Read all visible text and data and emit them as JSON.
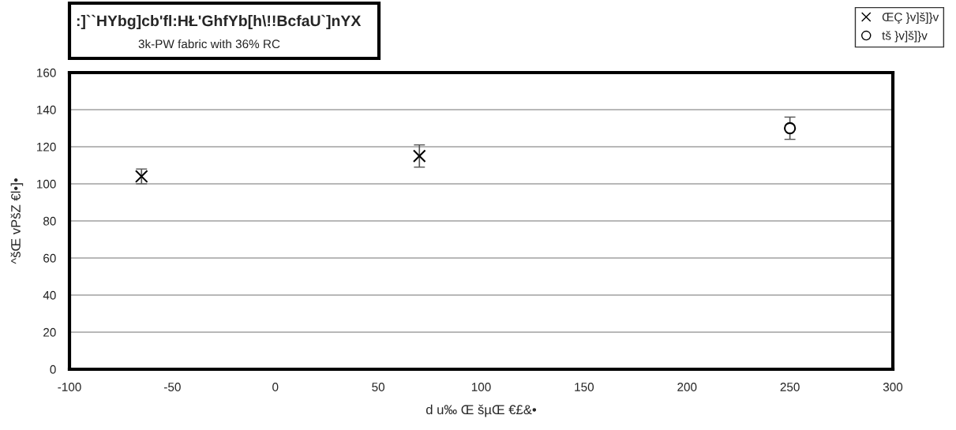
{
  "chart_data": {
    "type": "scatter",
    "title": ":]``HYbg]cb'fl:HŁ'GhfYb[h\\!!BcfaU`]nYX",
    "subtitle": "3k-PW fabric with 36% RC",
    "xlabel": "d u‰ Œ šµŒ €£&•",
    "ylabel": "^šŒ vPšZ €l•]•",
    "series": [
      {
        "name": "ŒÇ }v]š]}v",
        "color": "#000000",
        "marker": "cross",
        "x": [
          -65,
          70
        ],
        "values": [
          104,
          115
        ],
        "errors": [
          4,
          6
        ]
      },
      {
        "name": "tš }v]š]}v",
        "color": "#000000",
        "marker": "circle",
        "x": [
          250
        ],
        "values": [
          130
        ],
        "errors": [
          6
        ]
      }
    ],
    "xlim": [
      -100,
      300
    ],
    "xticks": [
      -100,
      -50,
      0,
      50,
      100,
      150,
      200,
      250,
      300
    ],
    "ylim": [
      0,
      160
    ],
    "yticks": [
      0,
      20,
      40,
      60,
      80,
      100,
      120,
      140,
      160
    ],
    "grid": "y",
    "legend": "top right"
  }
}
